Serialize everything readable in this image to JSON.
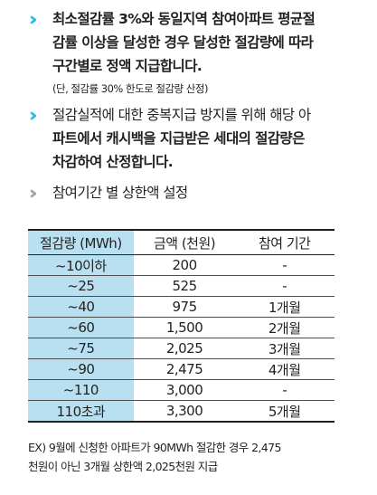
{
  "bullets": [
    {
      "icon": "double-chevron-right-icon",
      "icon_color": "#2cb7e8",
      "lines": [
        "최소절감률 3%와 동일지역 참여아파트 평균절",
        "감률 이상을 달성한 경우 달성한 절감량에 따라",
        "구간별로 정액 지급합니다."
      ],
      "note": "(단, 절감률 30% 한도로 절감량 산정)"
    },
    {
      "icon": "double-chevron-right-icon",
      "icon_color": "#2cb7e8",
      "lines": [
        "절감실적에 대한 중복지급 방지를 위해 해당 아",
        "파트에서 캐시백을 지급받은 세대의 절감량은",
        "차감하여 산정합니다."
      ]
    },
    {
      "icon": "double-chevron-right-icon",
      "icon_color": "#9aa7b0",
      "lines": [
        "참여기간 별 상한액 설정"
      ]
    }
  ],
  "table": {
    "header_bg": "#b9e0f1",
    "headers": [
      "절감량 (MWh)",
      "금액 (천원)",
      "참여 기간"
    ],
    "rows": [
      [
        "~10이하",
        "200",
        "-"
      ],
      [
        "~25",
        "525",
        "-"
      ],
      [
        "~40",
        "975",
        "1개월"
      ],
      [
        "~60",
        "1,500",
        "2개월"
      ],
      [
        "~75",
        "2,025",
        "3개월"
      ],
      [
        "~90",
        "2,475",
        "4개월"
      ],
      [
        "~110",
        "3,000",
        "-"
      ],
      [
        "110초과",
        "3,300",
        "5개월"
      ]
    ]
  },
  "footnote": {
    "lines": [
      "EX) 9월에 신청한 아파트가 90MWh 절감한 경우 2,475",
      "천원이 아닌 3개월 상한액 2,025천원 지급"
    ]
  }
}
